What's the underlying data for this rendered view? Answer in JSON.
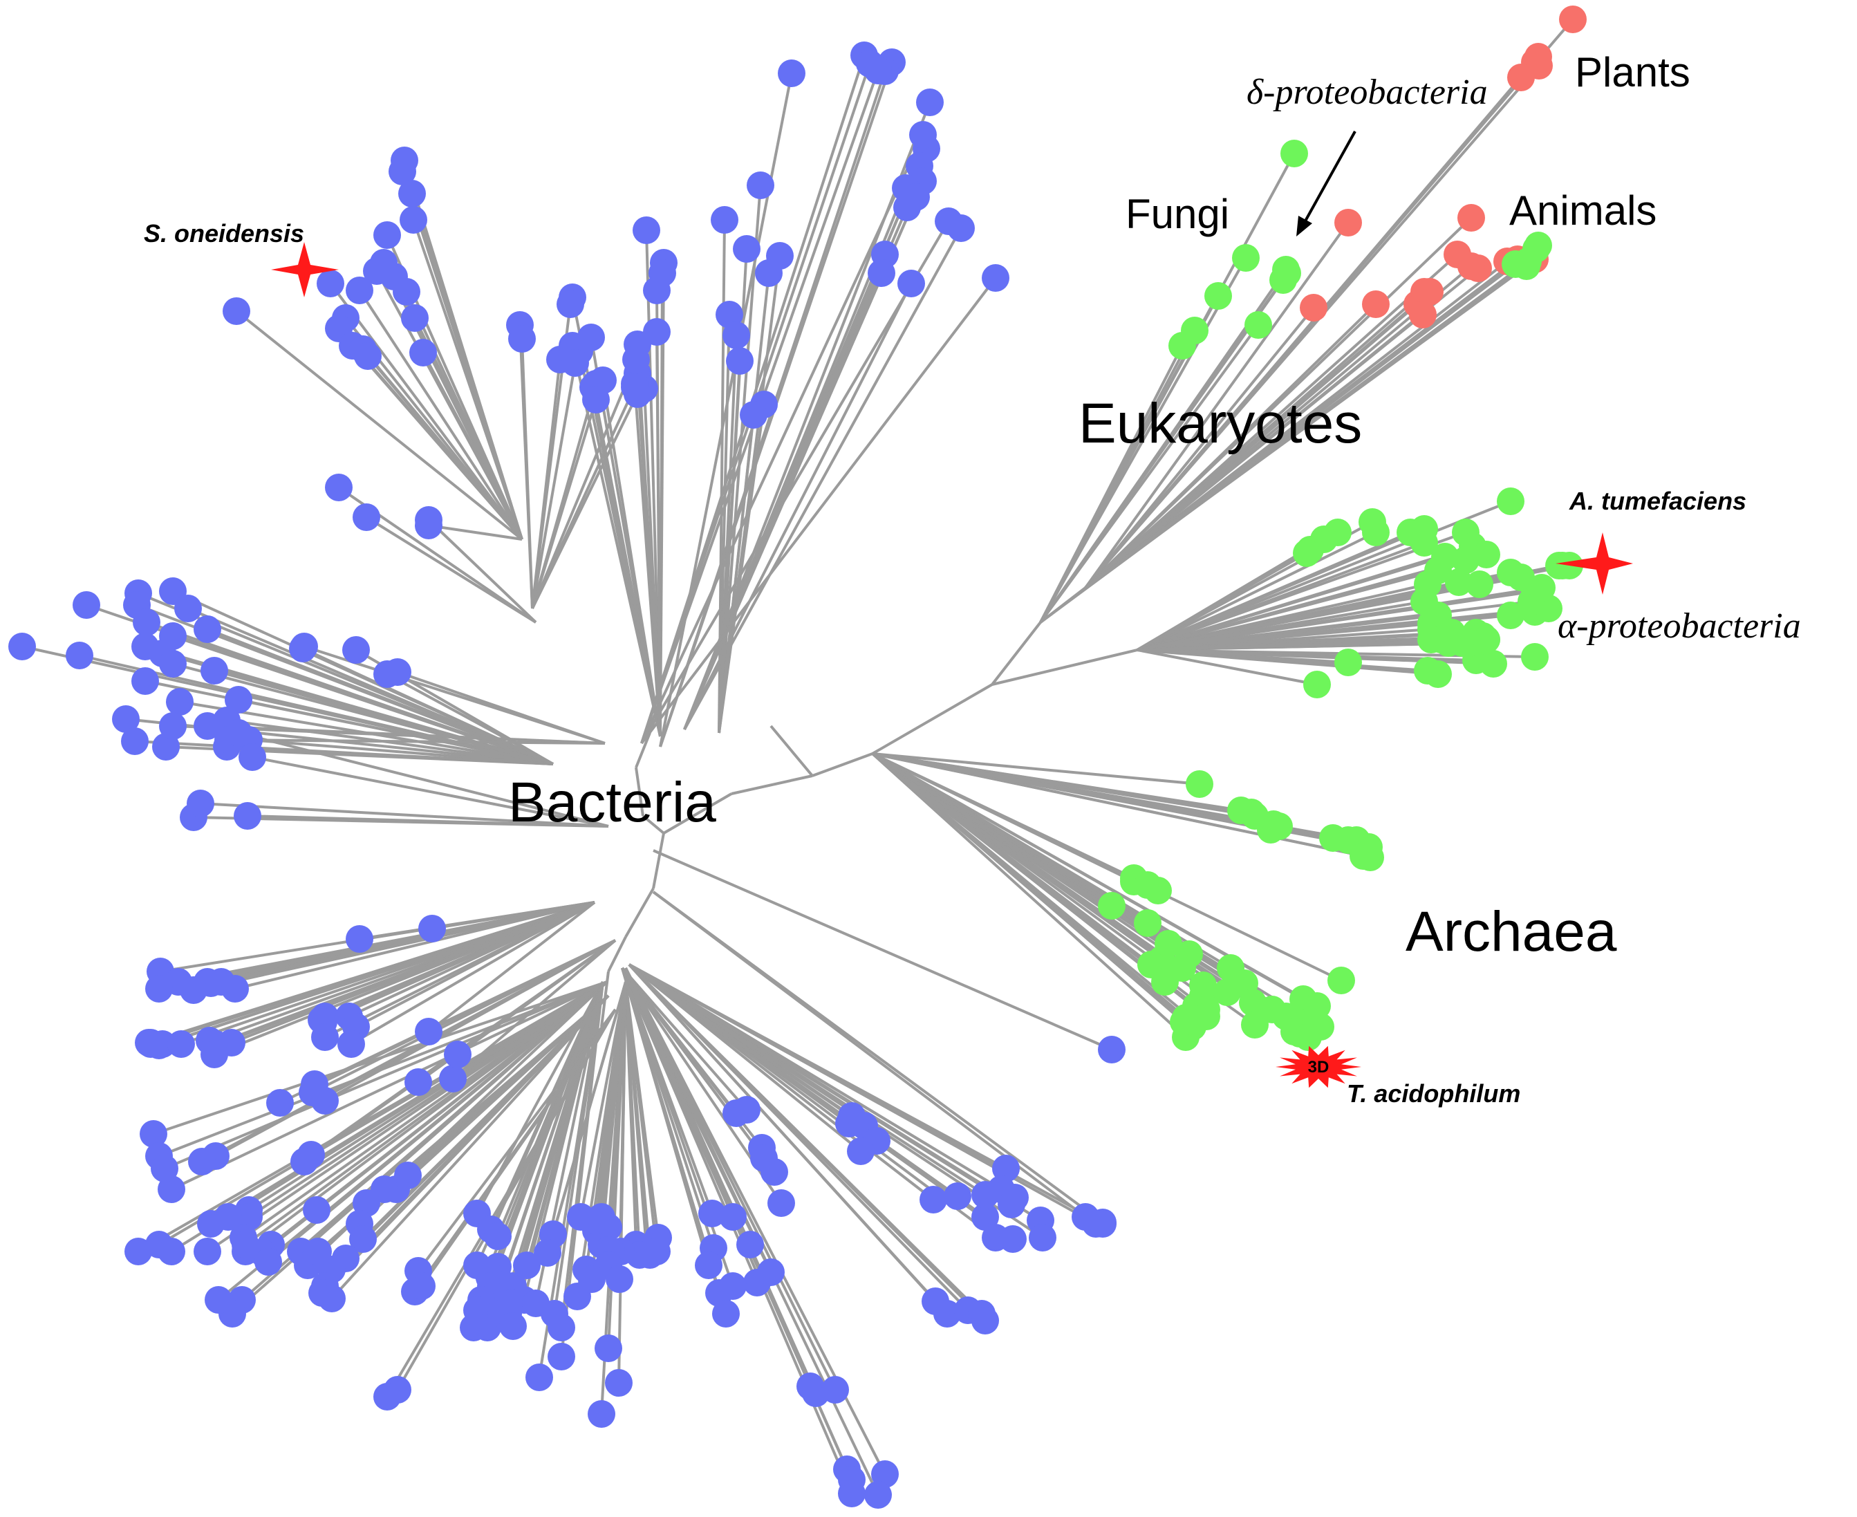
{
  "domains": {
    "bacteria": "Bacteria",
    "eukaryotes": "Eukaryotes",
    "archaea": "Archaea"
  },
  "groups": {
    "plants": "Plants",
    "animals": "Animals",
    "fungi": "Fungi",
    "delta": "δ-proteobacteria",
    "alpha": "α-proteobacteria"
  },
  "species": {
    "s_oneidensis": "S. oneidensis",
    "a_tumefaciens": "A. tumefaciens",
    "t_acidophilum": "T. acidophilum"
  },
  "badge": "3D",
  "colors": {
    "bacteria": "#6570f5",
    "proteobacteria_archaea": "#6ef55a",
    "eukaryota": "#f7716a",
    "branch": "#9b9b9b",
    "marker": "#ff1a1a"
  }
}
